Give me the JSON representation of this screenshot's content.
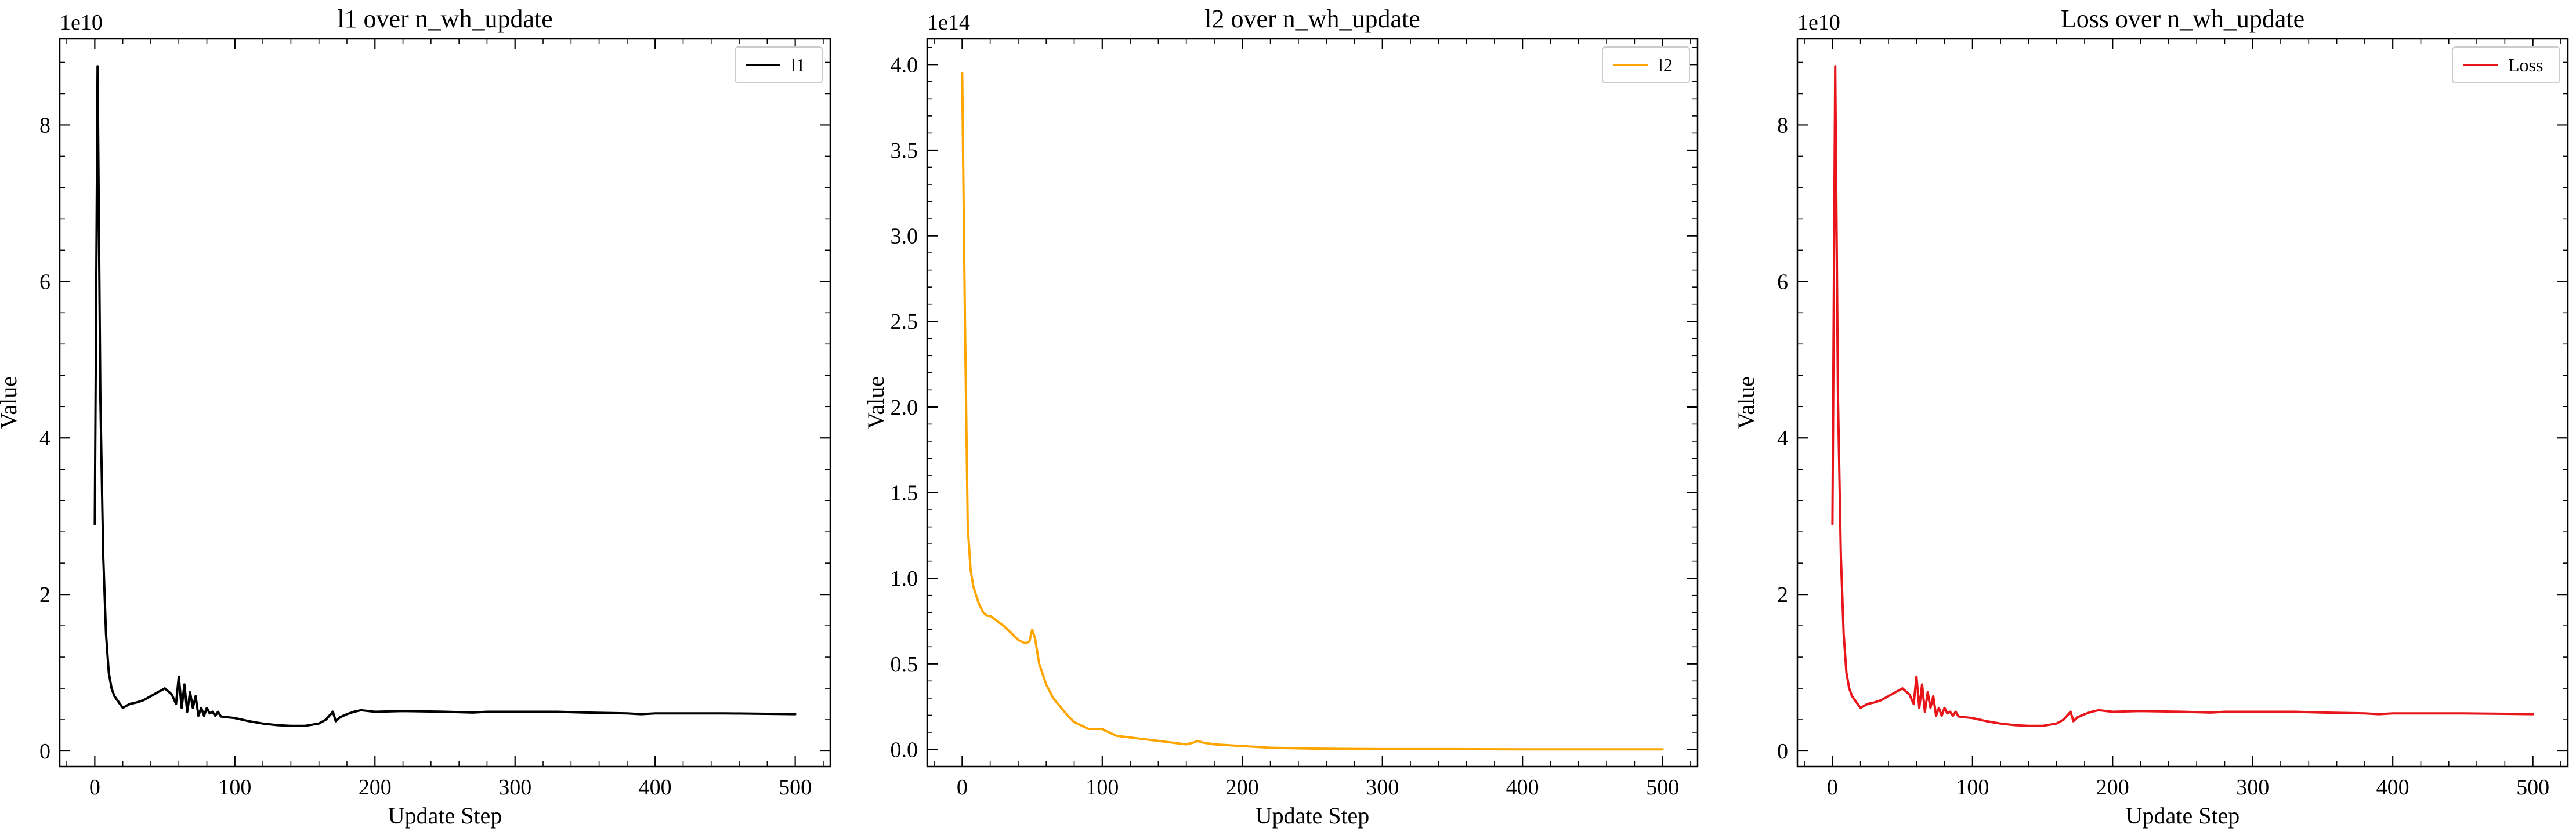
{
  "chart_data": [
    {
      "type": "line",
      "title": "l1 over n_wh_update",
      "xlabel": "Update Step",
      "ylabel": "Value",
      "y_offset_label": "1e10",
      "xlim": [
        -25,
        525
      ],
      "ylim": [
        -0.2,
        9.1
      ],
      "xticks": [
        0,
        100,
        200,
        300,
        400,
        500
      ],
      "yticks": [
        0,
        2,
        4,
        6,
        8
      ],
      "legend_position": "top-right",
      "grid": false,
      "series": [
        {
          "name": "l1",
          "color": "#000000",
          "x": [
            0,
            2,
            4,
            6,
            8,
            10,
            12,
            14,
            16,
            18,
            20,
            25,
            30,
            35,
            40,
            45,
            50,
            55,
            58,
            60,
            62,
            64,
            66,
            68,
            70,
            72,
            74,
            76,
            78,
            80,
            82,
            84,
            86,
            88,
            90,
            95,
            100,
            110,
            120,
            130,
            140,
            150,
            160,
            165,
            170,
            172,
            175,
            180,
            185,
            190,
            200,
            220,
            250,
            270,
            280,
            300,
            330,
            350,
            380,
            390,
            400,
            450,
            500
          ],
          "y": [
            2.9,
            8.75,
            4.5,
            2.5,
            1.5,
            1.0,
            0.8,
            0.7,
            0.65,
            0.6,
            0.55,
            0.6,
            0.62,
            0.65,
            0.7,
            0.75,
            0.8,
            0.72,
            0.6,
            0.95,
            0.55,
            0.85,
            0.5,
            0.75,
            0.55,
            0.7,
            0.45,
            0.55,
            0.45,
            0.55,
            0.48,
            0.5,
            0.45,
            0.5,
            0.44,
            0.43,
            0.42,
            0.38,
            0.35,
            0.33,
            0.32,
            0.32,
            0.35,
            0.4,
            0.5,
            0.38,
            0.43,
            0.47,
            0.5,
            0.52,
            0.5,
            0.51,
            0.5,
            0.49,
            0.5,
            0.5,
            0.5,
            0.49,
            0.48,
            0.47,
            0.48,
            0.48,
            0.47
          ]
        }
      ]
    },
    {
      "type": "line",
      "title": "l2 over n_wh_update",
      "xlabel": "Update Step",
      "ylabel": "Value",
      "y_offset_label": "1e14",
      "xlim": [
        -25,
        525
      ],
      "ylim": [
        -0.1,
        4.15
      ],
      "xticks": [
        0,
        100,
        200,
        300,
        400,
        500
      ],
      "yticks": [
        0.0,
        0.5,
        1.0,
        1.5,
        2.0,
        2.5,
        3.0,
        3.5,
        4.0
      ],
      "ytick_labels": [
        "0.0",
        "0.5",
        "1.0",
        "1.5",
        "2.0",
        "2.5",
        "3.0",
        "3.5",
        "4.0"
      ],
      "legend_position": "top-right",
      "grid": false,
      "series": [
        {
          "name": "l2",
          "color": "#ffa500",
          "x": [
            0,
            2,
            4,
            6,
            8,
            10,
            12,
            15,
            18,
            20,
            25,
            30,
            35,
            40,
            45,
            48,
            50,
            52,
            55,
            60,
            65,
            70,
            75,
            80,
            85,
            90,
            95,
            100,
            102,
            105,
            110,
            120,
            130,
            140,
            150,
            160,
            165,
            168,
            172,
            180,
            200,
            220,
            250,
            280,
            300,
            350,
            400,
            450,
            500
          ],
          "y": [
            3.95,
            2.5,
            1.3,
            1.05,
            0.95,
            0.9,
            0.85,
            0.8,
            0.78,
            0.78,
            0.75,
            0.72,
            0.68,
            0.64,
            0.62,
            0.63,
            0.7,
            0.65,
            0.5,
            0.38,
            0.3,
            0.25,
            0.2,
            0.16,
            0.14,
            0.12,
            0.12,
            0.12,
            0.11,
            0.1,
            0.08,
            0.07,
            0.06,
            0.05,
            0.04,
            0.03,
            0.04,
            0.05,
            0.04,
            0.03,
            0.02,
            0.01,
            0.005,
            0.003,
            0.002,
            0.002,
            0.001,
            0.001,
            0.001
          ]
        }
      ]
    },
    {
      "type": "line",
      "title": "Loss over n_wh_update",
      "xlabel": "Update Step",
      "ylabel": "Value",
      "y_offset_label": "1e10",
      "xlim": [
        -25,
        525
      ],
      "ylim": [
        -0.2,
        9.1
      ],
      "xticks": [
        0,
        100,
        200,
        300,
        400,
        500
      ],
      "yticks": [
        0,
        2,
        4,
        6,
        8
      ],
      "legend_position": "top-right",
      "grid": false,
      "series": [
        {
          "name": "Loss",
          "color": "#e8161b",
          "x": [
            0,
            2,
            4,
            6,
            8,
            10,
            12,
            14,
            16,
            18,
            20,
            25,
            30,
            35,
            40,
            45,
            50,
            55,
            58,
            60,
            62,
            64,
            66,
            68,
            70,
            72,
            74,
            76,
            78,
            80,
            82,
            84,
            86,
            88,
            90,
            95,
            100,
            110,
            120,
            130,
            140,
            150,
            160,
            165,
            170,
            172,
            175,
            180,
            185,
            190,
            200,
            220,
            250,
            270,
            280,
            300,
            330,
            350,
            380,
            390,
            400,
            450,
            500
          ],
          "y": [
            2.9,
            8.75,
            4.5,
            2.5,
            1.5,
            1.0,
            0.8,
            0.7,
            0.65,
            0.6,
            0.55,
            0.6,
            0.62,
            0.65,
            0.7,
            0.75,
            0.8,
            0.72,
            0.6,
            0.95,
            0.55,
            0.85,
            0.5,
            0.75,
            0.55,
            0.7,
            0.45,
            0.55,
            0.45,
            0.55,
            0.48,
            0.5,
            0.45,
            0.5,
            0.44,
            0.43,
            0.42,
            0.38,
            0.35,
            0.33,
            0.32,
            0.32,
            0.35,
            0.4,
            0.5,
            0.38,
            0.43,
            0.47,
            0.5,
            0.52,
            0.5,
            0.51,
            0.5,
            0.49,
            0.5,
            0.5,
            0.5,
            0.49,
            0.48,
            0.47,
            0.48,
            0.48,
            0.47
          ]
        }
      ]
    }
  ]
}
